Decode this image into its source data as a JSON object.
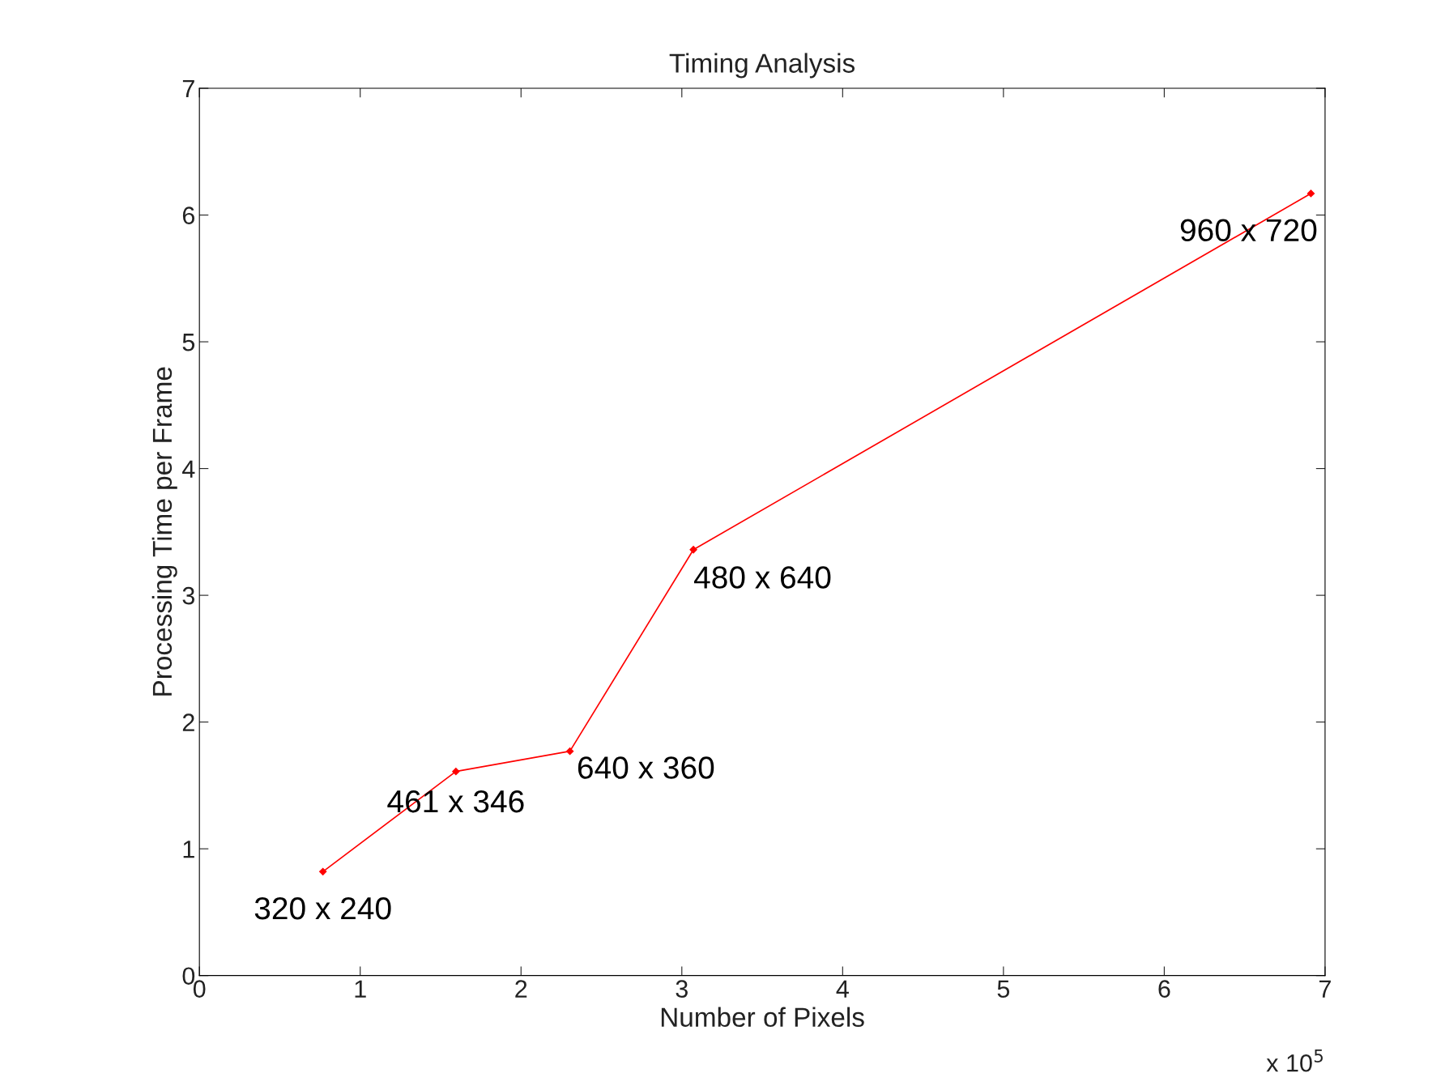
{
  "chart_data": {
    "type": "line",
    "title": "Timing Analysis",
    "xlabel": "Number of Pixels",
    "ylabel": "Processing Time per Frame",
    "x": [
      0.768,
      1.595,
      2.304,
      3.072,
      6.912
    ],
    "series": [
      {
        "color": "#ff0000",
        "values": [
          0.82,
          1.61,
          1.77,
          3.36,
          6.17
        ]
      }
    ],
    "marker": "diamond",
    "line_style": "solid",
    "grid": false,
    "xlim": [
      0,
      7
    ],
    "xticks": [
      0,
      1,
      2,
      3,
      4,
      5,
      6,
      7
    ],
    "ylim": [
      0,
      7
    ],
    "yticks": [
      0,
      1,
      2,
      3,
      4,
      5,
      6,
      7
    ],
    "annotations": [
      {
        "text": "320 x 240",
        "x": 0.768,
        "y": 0.82
      },
      {
        "text": "461 x 346",
        "x": 1.595,
        "y": 1.61
      },
      {
        "text": "640 x 360",
        "x": 2.304,
        "y": 1.77
      },
      {
        "text": "480 x 640",
        "x": 3.072,
        "y": 3.36
      },
      {
        "text": "960 x 720",
        "x": 6.912,
        "y": 6.17
      },
      "x 10$^{5}$"
    ]
  }
}
